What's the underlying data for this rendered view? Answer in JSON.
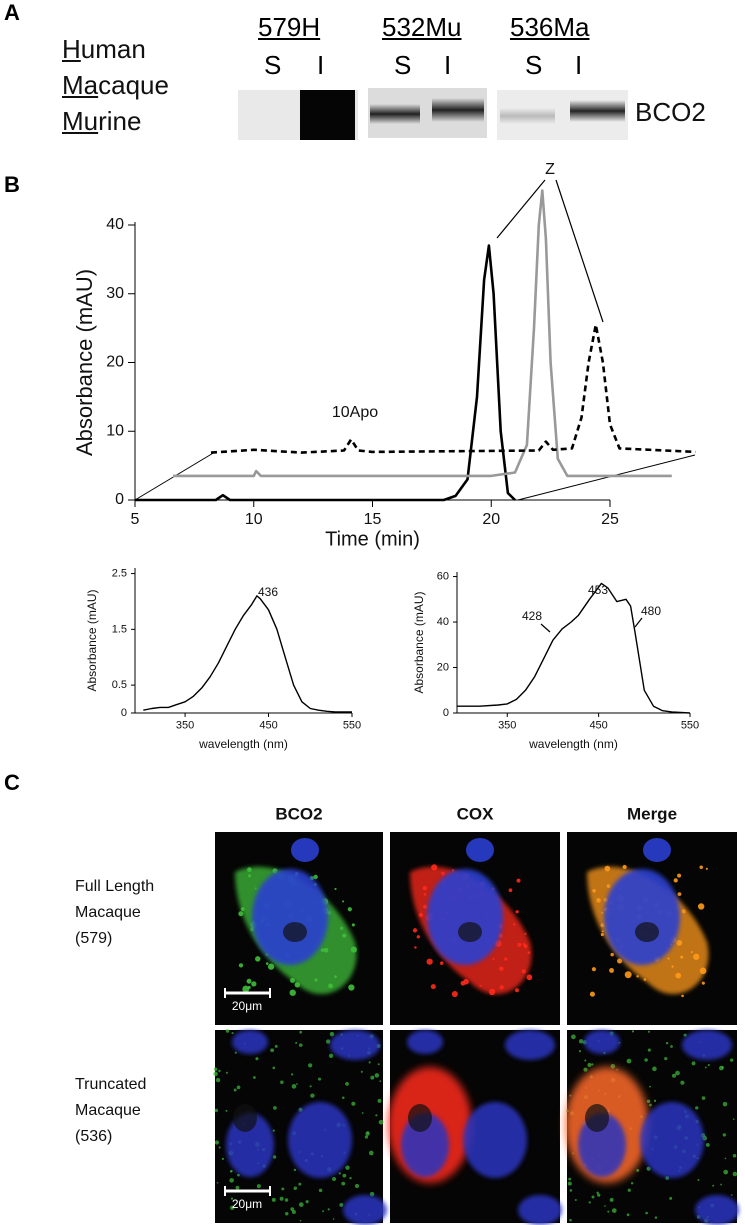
{
  "panel_a": {
    "label": "A",
    "species": [
      {
        "underlined": "H",
        "rest": "uman"
      },
      {
        "underlined": "Ma",
        "rest": "caque"
      },
      {
        "underlined": "Mu",
        "rest": "rine"
      }
    ],
    "blots": [
      {
        "name": "579H",
        "lanes": [
          "S",
          "I"
        ]
      },
      {
        "name": "532Mu",
        "lanes": [
          "S",
          "I"
        ]
      },
      {
        "name": "536Ma",
        "lanes": [
          "S",
          "I"
        ]
      }
    ],
    "protein": "BCO2"
  },
  "panel_b": {
    "label": "B"
  },
  "chart_data": [
    {
      "type": "line",
      "xlabel": "Time (min)",
      "ylabel": "Absorbance (mAU)",
      "xlim": [
        5,
        25
      ],
      "ylim": [
        0,
        40
      ],
      "xticks": [
        5,
        10,
        15,
        20,
        25
      ],
      "yticks": [
        0,
        10,
        20,
        30,
        40
      ],
      "annotations": [
        "Z",
        "10Apo"
      ],
      "series": [
        {
          "color": "#000000",
          "dashed": false,
          "x": [
            5,
            8.4,
            8.7,
            9.0,
            18,
            18.5,
            19.0,
            19.4,
            19.7,
            19.9,
            20.1,
            20.4,
            20.7,
            21.0
          ],
          "values": [
            0,
            0,
            0.7,
            0,
            0,
            0.6,
            3,
            15,
            32,
            37,
            30,
            10,
            1,
            0
          ]
        },
        {
          "color": "#999999",
          "dashed": false,
          "x": [
            6.6,
            10,
            10.1,
            10.3,
            20,
            21,
            21.5,
            21.8,
            22.0,
            22.15,
            22.3,
            22.5,
            22.8,
            23.2,
            27.6
          ],
          "values": [
            3.5,
            3.5,
            4.2,
            3.5,
            3.5,
            4,
            8,
            25,
            40,
            45,
            38,
            20,
            6,
            3.5,
            3.5
          ]
        },
        {
          "color": "#000000",
          "dashed": true,
          "x": [
            8.2,
            10,
            12,
            13.8,
            14.1,
            14.4,
            15,
            22,
            22.3,
            22.6,
            23.4,
            23.8,
            24.1,
            24.4,
            24.7,
            25.0,
            25.4,
            28.6
          ],
          "values": [
            6.9,
            7.3,
            6.9,
            7.2,
            8.8,
            7.2,
            7,
            7.2,
            8.5,
            7.3,
            7.5,
            12,
            20,
            25.5,
            20,
            11,
            7.5,
            7
          ]
        }
      ]
    },
    {
      "type": "line",
      "xlabel": "wavelength (nm)",
      "ylabel": "Absorbance (mAU)",
      "xlim": [
        290,
        550
      ],
      "ylim": [
        0,
        2.6
      ],
      "xticks": [
        350,
        450,
        550
      ],
      "yticks": [
        0,
        0.5,
        1.5,
        2.5
      ],
      "annotations": [
        "436"
      ],
      "series": [
        {
          "color": "#000000",
          "dashed": false,
          "x": [
            300,
            310,
            320,
            330,
            340,
            350,
            360,
            370,
            380,
            390,
            400,
            410,
            420,
            430,
            436,
            440,
            450,
            460,
            470,
            480,
            490,
            500,
            510,
            520,
            530,
            540,
            550
          ],
          "values": [
            0.05,
            0.08,
            0.1,
            0.1,
            0.15,
            0.2,
            0.3,
            0.45,
            0.65,
            0.9,
            1.2,
            1.5,
            1.75,
            1.95,
            2.1,
            2.05,
            1.85,
            1.5,
            1.0,
            0.5,
            0.2,
            0.08,
            0.05,
            0.03,
            0.02,
            0.02,
            0.02
          ]
        }
      ]
    },
    {
      "type": "line",
      "xlabel": "wavelength (nm)",
      "ylabel": "Absorbance (mAU)",
      "xlim": [
        295,
        550
      ],
      "ylim": [
        0,
        62
      ],
      "xticks": [
        350,
        450,
        550
      ],
      "yticks": [
        0,
        20,
        40,
        60
      ],
      "annotations": [
        "428",
        "453",
        "480"
      ],
      "series": [
        {
          "color": "#000000",
          "dashed": false,
          "x": [
            295,
            320,
            340,
            350,
            360,
            370,
            380,
            390,
            400,
            410,
            420,
            428,
            440,
            453,
            460,
            470,
            480,
            485,
            490,
            500,
            510,
            520,
            530,
            550
          ],
          "values": [
            3,
            3,
            3.5,
            4,
            6,
            10,
            16,
            24,
            32,
            37,
            40,
            43,
            50,
            57,
            55,
            49,
            50,
            47,
            35,
            10,
            3,
            1,
            0.5,
            0
          ]
        }
      ]
    }
  ],
  "panel_c": {
    "label": "C",
    "columns": [
      "BCO2",
      "COX",
      "Merge"
    ],
    "rows": [
      {
        "label_lines": [
          "Full Length",
          "Macaque",
          "(579)"
        ],
        "scale_bar": "20μm"
      },
      {
        "label_lines": [
          "Truncated",
          "Macaque",
          "(536)"
        ],
        "scale_bar": "20μm"
      }
    ]
  }
}
